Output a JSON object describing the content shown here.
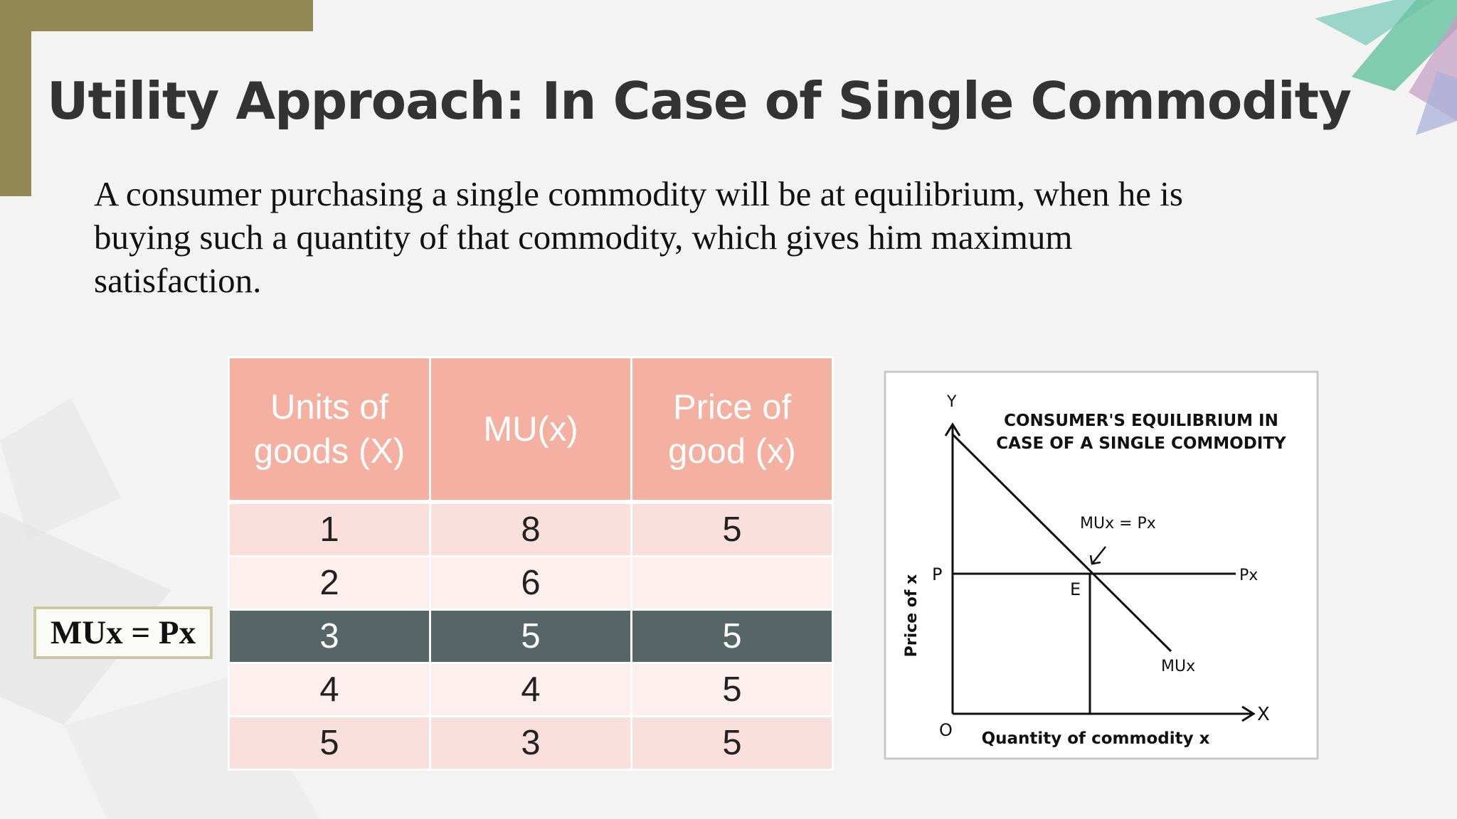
{
  "slide": {
    "title": "Utility Approach:  In Case of Single Commodity",
    "body": "A consumer purchasing a single commodity will be at equilibrium, when he is buying such a quantity of that commodity, which gives him maximum satisfaction."
  },
  "table": {
    "headers": [
      "Units of goods (X)",
      "MU(x)",
      "Price of good (x)"
    ],
    "rows": [
      [
        "1",
        "8",
        "5"
      ],
      [
        "2",
        "6",
        ""
      ],
      [
        "3",
        "5",
        "5"
      ],
      [
        "4",
        "4",
        "5"
      ],
      [
        "5",
        "3",
        "5"
      ]
    ],
    "highlighted_row": 3
  },
  "equation_label": "MUx = Px",
  "diagram": {
    "title_line1": "CONSUMER'S EQUILIBRIUM IN",
    "title_line2": "CASE OF A SINGLE COMMODITY",
    "y_axis_letter": "Y",
    "x_axis_letter": "X",
    "origin_label": "O",
    "y_axis_title": "Price of x",
    "x_axis_title": "Quantity of commodity x",
    "price_label": "P",
    "price_line_label": "Px",
    "curve_label": "MUx",
    "equilibrium_label": "E",
    "condition_label": "MUx = Px"
  },
  "colors": {
    "header_bg": "#f4b0a1",
    "row_odd_bg": "#f9e0dc",
    "row_even_bg": "#fcefed",
    "highlight_bg": "#566666",
    "accent_olive": "#918853"
  }
}
